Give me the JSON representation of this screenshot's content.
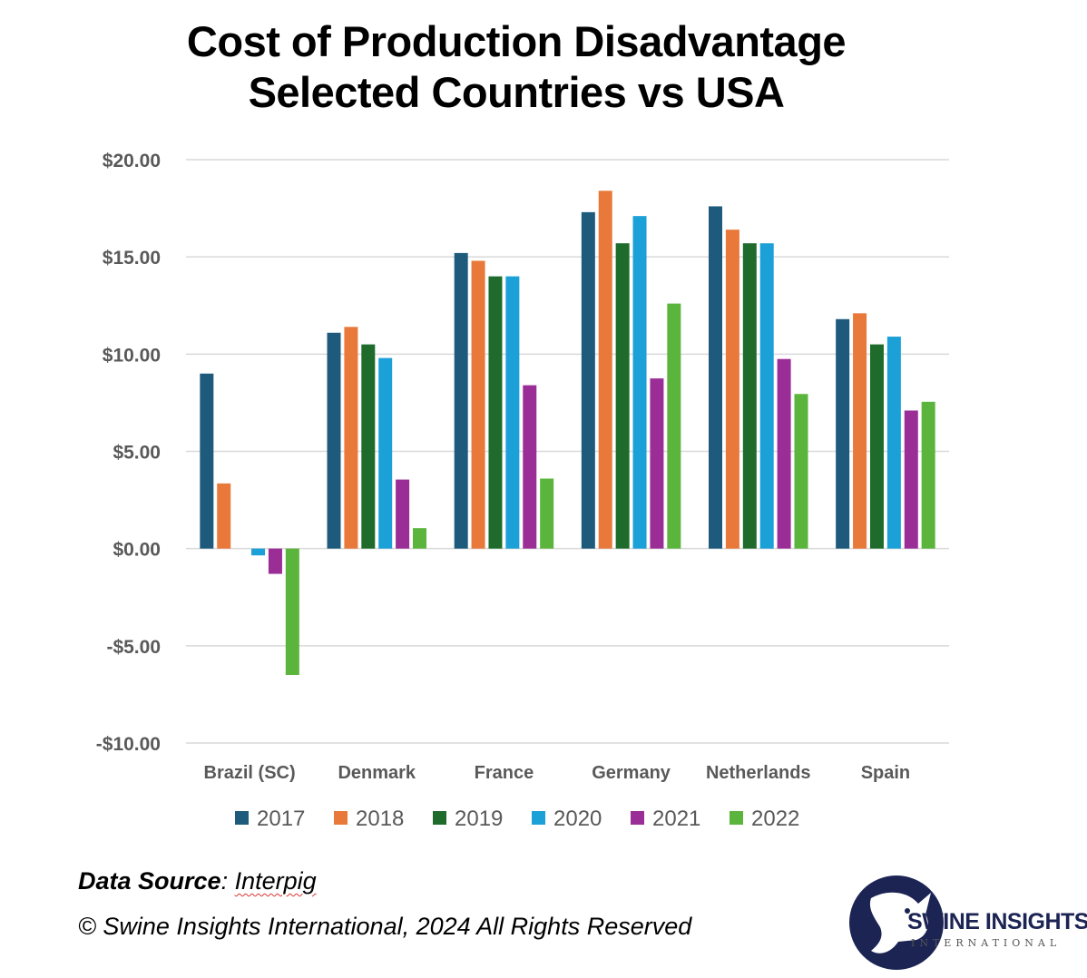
{
  "title_line1": "Cost of Production Disadvantage",
  "title_line2": "Selected Countries vs USA",
  "footer": {
    "source_label": "Data Source",
    "source_sep": ": ",
    "source_value": "Interpig",
    "copyright": "© Swine Insights International, 2024 All Rights Reserved"
  },
  "logo": {
    "name": "SWINE INSIGHTS",
    "subtitle": "INTERNATIONAL",
    "color": "#1c2454"
  },
  "chart_data": {
    "type": "bar",
    "title": "Cost of Production Disadvantage Selected Countries vs USA",
    "xlabel": "",
    "ylabel": "",
    "categories": [
      "Brazil (SC)",
      "Denmark",
      "France",
      "Germany",
      "Netherlands",
      "Spain"
    ],
    "ylim": [
      -10,
      20
    ],
    "yticks": [
      20,
      15,
      10,
      5,
      0,
      -5,
      -10
    ],
    "ytick_labels": [
      "$20.00",
      "$15.00",
      "$10.00",
      "$5.00",
      "$0.00",
      "-$5.00",
      "-$10.00"
    ],
    "grid": true,
    "legend_position": "bottom",
    "series": [
      {
        "name": "2017",
        "color": "#1d5a7c",
        "values": [
          9.0,
          11.1,
          15.2,
          17.3,
          17.6,
          11.8
        ]
      },
      {
        "name": "2018",
        "color": "#e8793a",
        "values": [
          3.35,
          11.4,
          14.8,
          18.4,
          16.4,
          12.1
        ]
      },
      {
        "name": "2019",
        "color": "#1e6b2c",
        "values": [
          0,
          10.5,
          14.0,
          15.7,
          15.7,
          10.5
        ]
      },
      {
        "name": "2020",
        "color": "#1ba0d8",
        "values": [
          -0.35,
          9.8,
          14.0,
          17.1,
          15.7,
          10.9
        ]
      },
      {
        "name": "2021",
        "color": "#9b2d96",
        "values": [
          -1.3,
          3.55,
          8.4,
          8.75,
          9.75,
          7.1
        ]
      },
      {
        "name": "2022",
        "color": "#5bb43c",
        "values": [
          -6.5,
          1.05,
          3.6,
          12.6,
          7.95,
          7.55
        ]
      }
    ]
  }
}
